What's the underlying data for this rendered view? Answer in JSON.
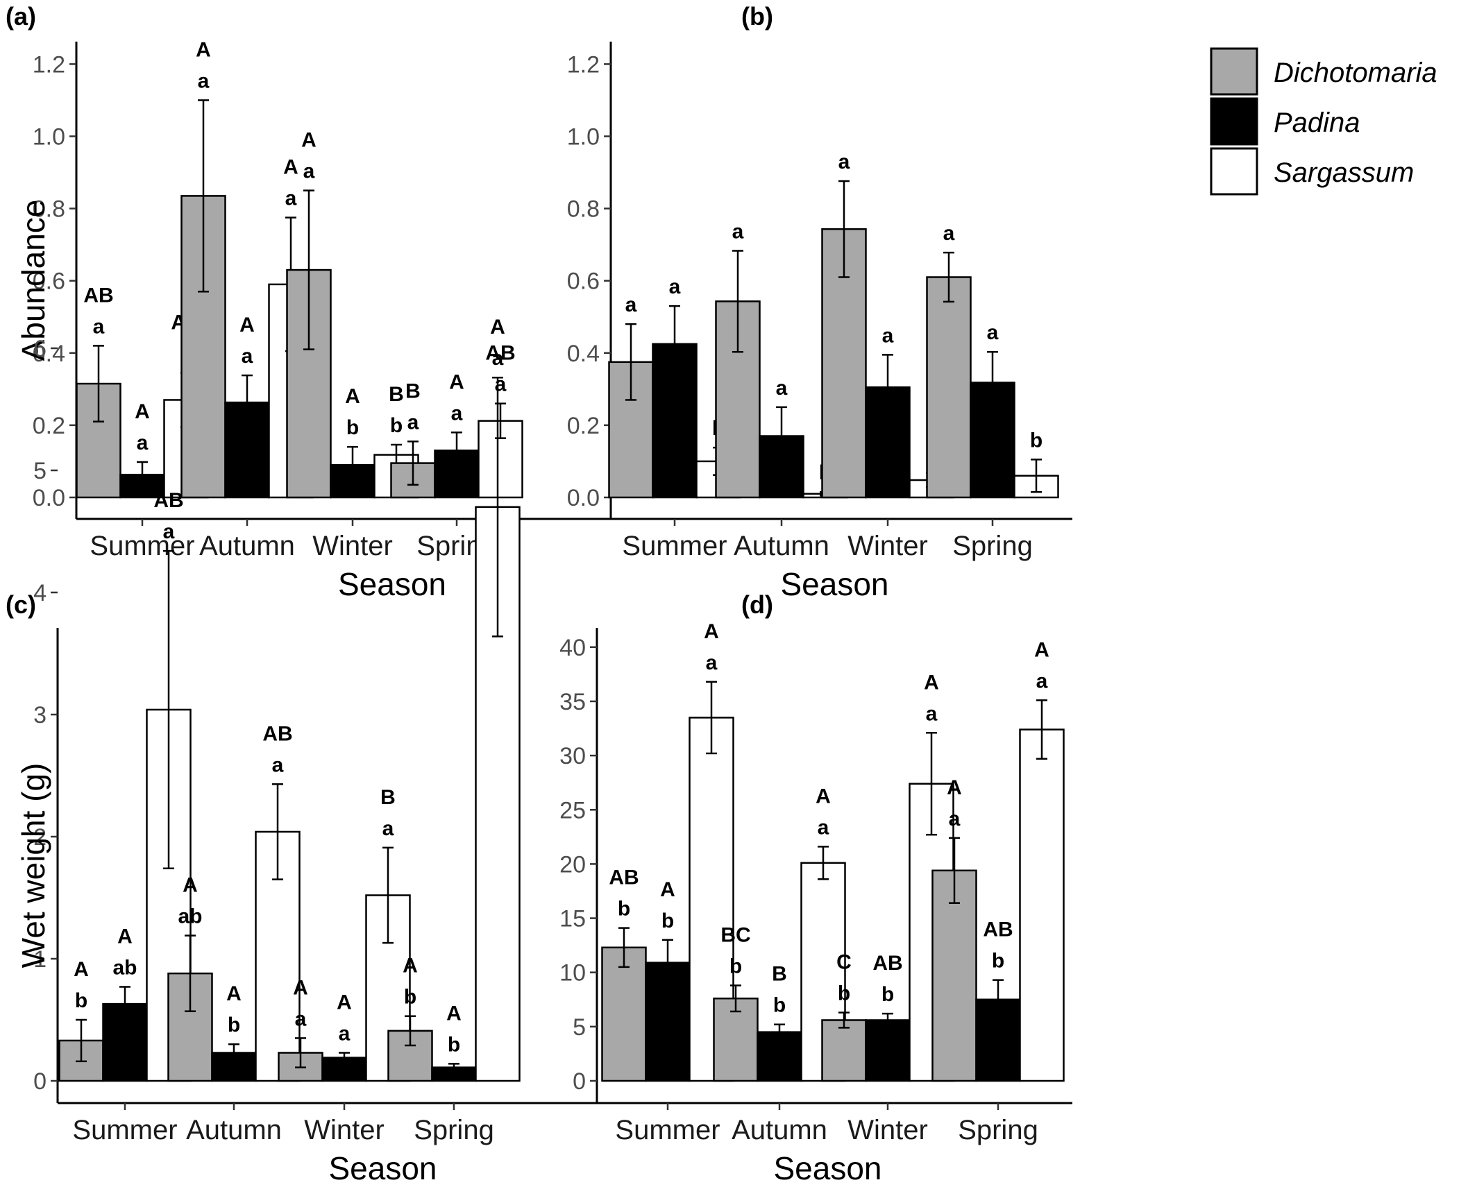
{
  "legend": [
    {
      "name": "Dichotomaria",
      "color": "#a8a8a8"
    },
    {
      "name": "Padina",
      "color": "#000000"
    },
    {
      "name": "Sargassum",
      "color": "#ffffff"
    }
  ],
  "chart_data": [
    {
      "panel": "(a)",
      "type": "bar",
      "categories": [
        "Summer",
        "Autumn",
        "Winter",
        "Spring"
      ],
      "xlabel": "Season",
      "ylabel": "Abundance",
      "ylim": [
        0,
        1.25
      ],
      "yticks": [
        "0.0",
        "0.2",
        "0.4",
        "0.6",
        "0.8",
        "1.0",
        "1.2"
      ],
      "yticks_values": [
        0,
        0.2,
        0.4,
        0.6,
        0.8,
        1.0,
        1.2
      ],
      "series": [
        {
          "name": "Dichotomaria",
          "values": [
            0.315,
            0.835,
            0.63,
            0.095
          ],
          "errors": [
            0.105,
            0.265,
            0.22,
            0.06
          ],
          "letters_upper": [
            "AB",
            "A",
            "A",
            "B"
          ],
          "letters_lower": [
            "a",
            "a",
            "a",
            "a"
          ]
        },
        {
          "name": "Padina",
          "values": [
            0.063,
            0.263,
            0.09,
            0.13
          ],
          "errors": [
            0.035,
            0.075,
            0.05,
            0.05
          ],
          "letters_upper": [
            "A",
            "A",
            "A",
            "A"
          ],
          "letters_lower": [
            "a",
            "a",
            "b",
            "a"
          ]
        },
        {
          "name": "Sargassum",
          "values": [
            0.27,
            0.59,
            0.118,
            0.212
          ],
          "errors": [
            0.075,
            0.185,
            0.028,
            0.048
          ],
          "letters_upper": [
            "AB",
            "A",
            "B",
            "AB"
          ],
          "letters_lower": [
            "a",
            "a",
            "b",
            "a"
          ]
        }
      ]
    },
    {
      "panel": "(b)",
      "type": "bar",
      "categories": [
        "Summer",
        "Autumn",
        "Winter",
        "Spring"
      ],
      "xlabel": "Season",
      "ylabel": "",
      "ylim": [
        0,
        1.25
      ],
      "yticks": [
        "0.0",
        "0.2",
        "0.4",
        "0.6",
        "0.8",
        "1.0",
        "1.2"
      ],
      "yticks_values": [
        0,
        0.2,
        0.4,
        0.6,
        0.8,
        1.0,
        1.2
      ],
      "series": [
        {
          "name": "Dichotomaria",
          "values": [
            0.375,
            0.543,
            0.743,
            0.61
          ],
          "errors": [
            0.105,
            0.14,
            0.133,
            0.068
          ],
          "letters_upper": [
            "",
            "",
            "",
            ""
          ],
          "letters_lower": [
            "a",
            "a",
            "a",
            "a"
          ]
        },
        {
          "name": "Padina",
          "values": [
            0.425,
            0.17,
            0.305,
            0.318
          ],
          "errors": [
            0.105,
            0.08,
            0.09,
            0.085
          ],
          "letters_upper": [
            "",
            "",
            "",
            ""
          ],
          "letters_lower": [
            "a",
            "a",
            "a",
            "a"
          ]
        },
        {
          "name": "Sargassum",
          "values": [
            0.1,
            0.01,
            0.048,
            0.06
          ],
          "errors": [
            0.038,
            0.005,
            0.02,
            0.045
          ],
          "letters_upper": [
            "",
            "",
            "",
            ""
          ],
          "letters_lower": [
            "b",
            "b",
            "b",
            "b"
          ]
        }
      ]
    },
    {
      "panel": "(c)",
      "type": "bar",
      "categories": [
        "Summer",
        "Autumn",
        "Winter",
        "Spring"
      ],
      "xlabel": "Season",
      "ylabel": "Wet weight (g)",
      "ylim": [
        0,
        6.3
      ],
      "yticks": [
        "0",
        "1",
        "2",
        "3",
        "4",
        "5",
        "6"
      ],
      "yticks_values": [
        0,
        1,
        2,
        3,
        4,
        5,
        6
      ],
      "series": [
        {
          "name": "Dichotomaria",
          "values": [
            0.33,
            0.88,
            0.23,
            0.41
          ],
          "errors": [
            0.17,
            0.31,
            0.12,
            0.12
          ],
          "letters_upper": [
            "A",
            "A",
            "A",
            "A"
          ],
          "letters_lower": [
            "b",
            "ab",
            "a",
            "b"
          ]
        },
        {
          "name": "Padina",
          "values": [
            0.63,
            0.23,
            0.19,
            0.11
          ],
          "errors": [
            0.14,
            0.07,
            0.04,
            0.03
          ],
          "letters_upper": [
            "A",
            "A",
            "A",
            "A"
          ],
          "letters_lower": [
            "ab",
            "b",
            "a",
            "b"
          ]
        },
        {
          "name": "Sargassum",
          "values": [
            3.04,
            2.04,
            1.52,
            4.7
          ],
          "errors": [
            1.3,
            0.39,
            0.39,
            1.06
          ],
          "letters_upper": [
            "AB",
            "AB",
            "B",
            "A"
          ],
          "letters_lower": [
            "a",
            "a",
            "a",
            "a"
          ]
        }
      ]
    },
    {
      "panel": "(d)",
      "type": "bar",
      "categories": [
        "Summer",
        "Autumn",
        "Winter",
        "Spring"
      ],
      "xlabel": "Season",
      "ylabel": "",
      "ylim": [
        0,
        42
      ],
      "yticks": [
        "0",
        "5",
        "10",
        "15",
        "20",
        "25",
        "30",
        "35",
        "40"
      ],
      "yticks_values": [
        0,
        5,
        10,
        15,
        20,
        25,
        30,
        35,
        40
      ],
      "series": [
        {
          "name": "Dichotomaria",
          "values": [
            12.3,
            7.6,
            5.6,
            19.4
          ],
          "errors": [
            1.8,
            1.2,
            0.7,
            3.0
          ],
          "letters_upper": [
            "AB",
            "BC",
            "C",
            "A"
          ],
          "letters_lower": [
            "b",
            "b",
            "b",
            "a"
          ]
        },
        {
          "name": "Padina",
          "values": [
            10.9,
            4.5,
            5.6,
            7.5
          ],
          "errors": [
            2.1,
            0.7,
            0.6,
            1.8
          ],
          "letters_upper": [
            "A",
            "B",
            "AB",
            "AB"
          ],
          "letters_lower": [
            "b",
            "b",
            "b",
            "b"
          ]
        },
        {
          "name": "Sargassum",
          "values": [
            33.5,
            20.1,
            27.4,
            32.4
          ],
          "errors": [
            3.3,
            1.5,
            4.7,
            2.7
          ],
          "letters_upper": [
            "A",
            "A",
            "A",
            "A"
          ],
          "letters_lower": [
            "a",
            "a",
            "a",
            "a"
          ]
        }
      ]
    }
  ]
}
